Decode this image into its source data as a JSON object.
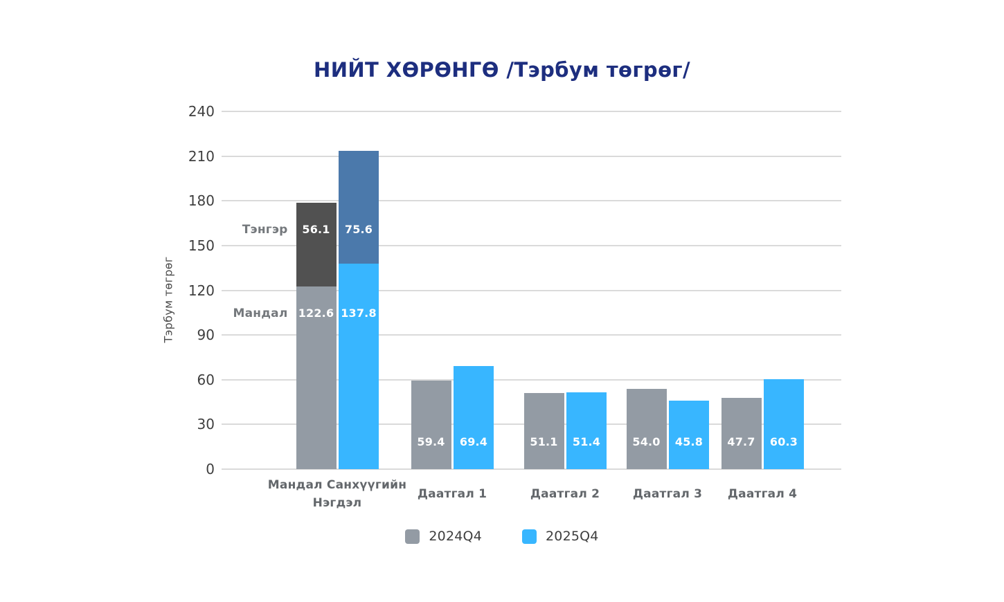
{
  "page": {
    "background": "#ffffff"
  },
  "title": {
    "text": "НИЙТ ХӨРӨНГӨ /Тэрбум төгрөг/",
    "color": "#1d2e7f"
  },
  "colors": {
    "series_2024": "#939ba4",
    "series_2025": "#38b6ff",
    "stack_tenger_2024": "#515151",
    "stack_tenger_2025": "#4b79ab",
    "gridline": "#dadada",
    "tick_text": "#3f3f3f",
    "category_text": "#63676b",
    "value_text": "#ffffff"
  },
  "chart_data": {
    "type": "bar",
    "subtype": "grouped, first group stacked by company",
    "title": "НИЙТ ХӨРӨНГӨ /Тэрбум төгрөг/",
    "xlabel": "",
    "ylabel": "Тэрбум төгрөг",
    "ylim": [
      0,
      240
    ],
    "y_ticks": [
      0,
      30,
      60,
      90,
      120,
      150,
      180,
      210,
      240
    ],
    "grid": "horizontal",
    "legend_position": "bottom",
    "legend": {
      "items": [
        {
          "label": "2024Q4",
          "color": "#939ba4"
        },
        {
          "label": "2025Q4",
          "color": "#38b6ff"
        }
      ]
    },
    "series_names": [
      "2024Q4",
      "2025Q4"
    ],
    "groups": [
      {
        "category_lines": [
          "Мандал Санхүүгийн",
          "Нэгдэл"
        ],
        "stacked": true,
        "segment_labels": [
          "Мандал",
          "Тэнгэр"
        ],
        "bars": [
          {
            "series": "2024Q4",
            "segments": [
              {
                "name": "Мандал",
                "value": 122.6,
                "label": "122.6",
                "color": "#939ba4"
              },
              {
                "name": "Тэнгэр",
                "value": 56.1,
                "label": "56.1",
                "color": "#515151"
              }
            ]
          },
          {
            "series": "2025Q4",
            "segments": [
              {
                "name": "Мандал",
                "value": 137.8,
                "label": "137.8",
                "color": "#38b6ff"
              },
              {
                "name": "Тэнгэр",
                "value": 75.6,
                "label": "75.6",
                "color": "#4b79ab"
              }
            ]
          }
        ]
      },
      {
        "category_lines": [
          "Даатгал 1"
        ],
        "stacked": false,
        "bars": [
          {
            "series": "2024Q4",
            "segments": [
              {
                "value": 59.4,
                "label": "59.4",
                "color": "#939ba4"
              }
            ]
          },
          {
            "series": "2025Q4",
            "segments": [
              {
                "value": 69.4,
                "label": "69.4",
                "color": "#38b6ff"
              }
            ]
          }
        ]
      },
      {
        "category_lines": [
          "Даатгал 2"
        ],
        "stacked": false,
        "bars": [
          {
            "series": "2024Q4",
            "segments": [
              {
                "value": 51.1,
                "label": "51.1",
                "color": "#939ba4"
              }
            ]
          },
          {
            "series": "2025Q4",
            "segments": [
              {
                "value": 51.4,
                "label": "51.4",
                "color": "#38b6ff"
              }
            ]
          }
        ]
      },
      {
        "category_lines": [
          "Даатгал 3"
        ],
        "stacked": false,
        "bars": [
          {
            "series": "2024Q4",
            "segments": [
              {
                "value": 54.0,
                "label": "54.0",
                "color": "#939ba4"
              }
            ]
          },
          {
            "series": "2025Q4",
            "segments": [
              {
                "value": 45.8,
                "label": "45.8",
                "color": "#38b6ff"
              }
            ]
          }
        ]
      },
      {
        "category_lines": [
          "Даатгал 4"
        ],
        "stacked": false,
        "bars": [
          {
            "series": "2024Q4",
            "segments": [
              {
                "value": 47.7,
                "label": "47.7",
                "color": "#939ba4"
              }
            ]
          },
          {
            "series": "2025Q4",
            "segments": [
              {
                "value": 60.3,
                "label": "60.3",
                "color": "#38b6ff"
              }
            ]
          }
        ]
      }
    ]
  }
}
